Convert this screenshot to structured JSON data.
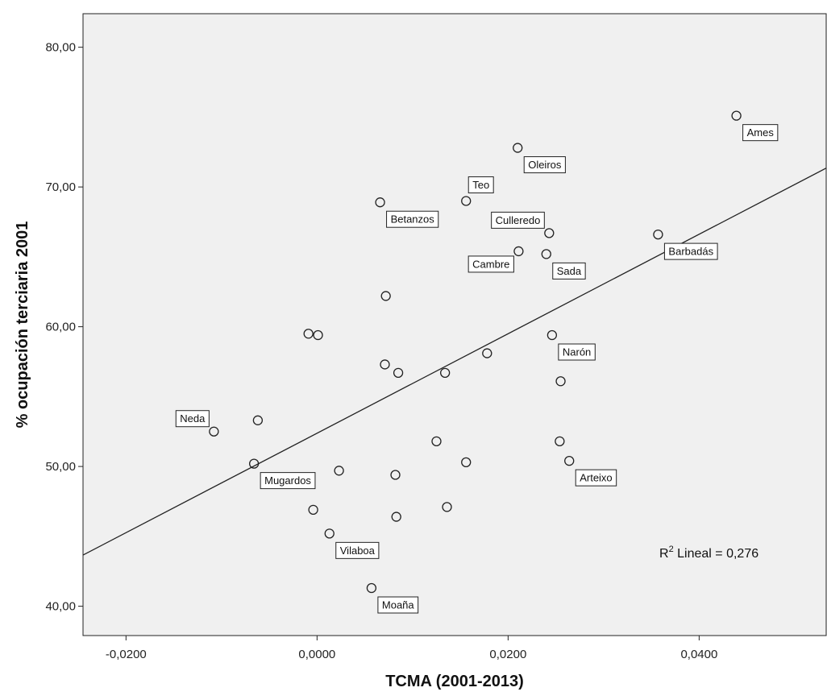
{
  "chart_data": {
    "type": "scatter",
    "title": "",
    "xlabel": "TCMA (2001-2013)",
    "ylabel": "% ocupación terciaria 2001",
    "xlim": [
      -0.0245,
      0.0533
    ],
    "ylim": [
      37.9,
      82.4
    ],
    "x_ticks": [
      {
        "value": -0.02,
        "label": "-0,0200"
      },
      {
        "value": 0.0,
        "label": "0,0000"
      },
      {
        "value": 0.02,
        "label": "0,0200"
      },
      {
        "value": 0.04,
        "label": "0,0400"
      }
    ],
    "y_ticks": [
      {
        "value": 40,
        "label": "40,00"
      },
      {
        "value": 50,
        "label": "50,00"
      },
      {
        "value": 60,
        "label": "60,00"
      },
      {
        "value": 70,
        "label": "70,00"
      },
      {
        "value": 80,
        "label": "80,00"
      }
    ],
    "background": "#f0f0f0",
    "grid": false,
    "points": [
      {
        "x": 0.0439,
        "y": 75.1,
        "label": "Ames",
        "label_pos": "right-below"
      },
      {
        "x": 0.021,
        "y": 72.8,
        "label": "Oleiros",
        "label_pos": "right-below"
      },
      {
        "x": 0.0156,
        "y": 69.0,
        "label": "Teo",
        "label_pos": "right-above"
      },
      {
        "x": 0.0066,
        "y": 68.9,
        "label": "Betanzos",
        "label_pos": "right-below"
      },
      {
        "x": 0.0243,
        "y": 66.7,
        "label": "Culleredo",
        "label_pos": "left-above"
      },
      {
        "x": 0.0357,
        "y": 66.6,
        "label": "Barbadás",
        "label_pos": "right-below"
      },
      {
        "x": 0.0211,
        "y": 65.4,
        "label": "Cambre",
        "label_pos": "left-below"
      },
      {
        "x": 0.024,
        "y": 65.2,
        "label": "Sada",
        "label_pos": "right-below"
      },
      {
        "x": 0.0072,
        "y": 62.2,
        "label": ""
      },
      {
        "x": -0.0009,
        "y": 59.5,
        "label": ""
      },
      {
        "x": 0.0001,
        "y": 59.4,
        "label": ""
      },
      {
        "x": 0.0246,
        "y": 59.4,
        "label": "Narón",
        "label_pos": "right-below"
      },
      {
        "x": 0.0071,
        "y": 57.3,
        "label": ""
      },
      {
        "x": 0.0178,
        "y": 58.1,
        "label": ""
      },
      {
        "x": 0.0085,
        "y": 56.7,
        "label": ""
      },
      {
        "x": 0.0134,
        "y": 56.7,
        "label": ""
      },
      {
        "x": 0.0255,
        "y": 56.1,
        "label": ""
      },
      {
        "x": -0.0062,
        "y": 53.3,
        "label": ""
      },
      {
        "x": -0.0108,
        "y": 52.5,
        "label": "Neda",
        "label_pos": "left-above"
      },
      {
        "x": 0.0125,
        "y": 51.8,
        "label": ""
      },
      {
        "x": 0.0254,
        "y": 51.8,
        "label": ""
      },
      {
        "x": 0.0156,
        "y": 50.3,
        "label": ""
      },
      {
        "x": 0.0264,
        "y": 50.4,
        "label": "Arteixo",
        "label_pos": "right-below"
      },
      {
        "x": -0.0066,
        "y": 50.2,
        "label": "Mugardos",
        "label_pos": "right-below"
      },
      {
        "x": 0.0023,
        "y": 49.7,
        "label": ""
      },
      {
        "x": 0.0082,
        "y": 49.4,
        "label": ""
      },
      {
        "x": -0.0004,
        "y": 46.9,
        "label": ""
      },
      {
        "x": 0.0136,
        "y": 47.1,
        "label": ""
      },
      {
        "x": 0.0083,
        "y": 46.4,
        "label": ""
      },
      {
        "x": 0.0013,
        "y": 45.2,
        "label": "Vilaboa",
        "label_pos": "right-below"
      },
      {
        "x": 0.0057,
        "y": 41.3,
        "label": "Moaña",
        "label_pos": "right-below"
      }
    ],
    "fit_line": {
      "x": [
        -0.0245,
        0.0533
      ],
      "y": [
        43.66,
        71.35
      ]
    },
    "r2_label": "R² Lineal = 0,276"
  }
}
